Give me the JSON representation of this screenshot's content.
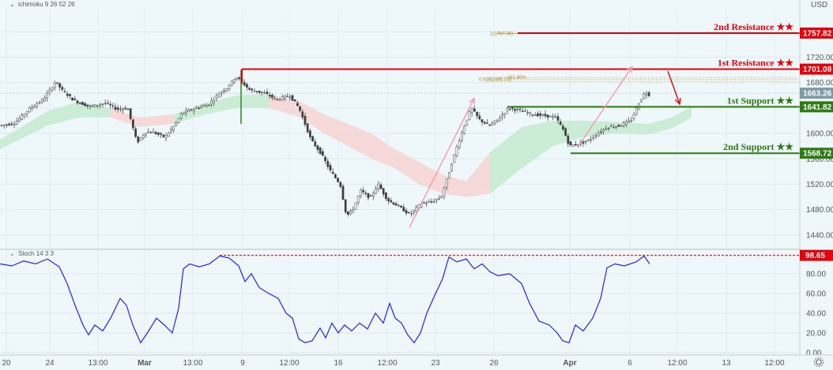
{
  "header": {
    "main_indicator": "ichimoku 9 26 52 26",
    "currency": "USD",
    "stoch_indicator": "Stoch 14 3 3"
  },
  "levels": [
    {
      "name": "2nd Resistance",
      "price": 1757.82,
      "price_label": "1757.82",
      "kind": "resistance",
      "color": "#e8000b"
    },
    {
      "name": "1st Resistance",
      "price": 1701.08,
      "price_label": "1701.08",
      "kind": "resistance",
      "color": "#e8000b"
    },
    {
      "name": "1st Support",
      "price": 1641.82,
      "price_label": "1641.82",
      "kind": "support",
      "color": "#2f7a12"
    },
    {
      "name": "2nd Support",
      "price": 1568.72,
      "price_label": "1568.72",
      "kind": "support",
      "color": "#2f7a12"
    }
  ],
  "star_glyph": "★★",
  "fib_labels": {
    "one": "1(1757.35)",
    "golden": "0.618(1685.33)",
    "mid": "161.80%"
  },
  "current_price": {
    "value": 1663.26,
    "label": "1663.26"
  },
  "stoch_level": {
    "value": 98.65,
    "label": "98.65"
  },
  "colors": {
    "background": "#eef8fb",
    "resistance": "#e8000b",
    "support": "#2f7a12",
    "stoch_line": "#2323e6",
    "arrow": "#f59aa8",
    "candle": "#3d3d3d",
    "cloud_bull": "#c7ebd0",
    "cloud_bear": "#f6d6d6"
  },
  "chart_data": [
    {
      "type": "candlestick",
      "title": "",
      "ylabel": "USD",
      "ylim": [
        1425,
        1795
      ],
      "y_ticks": [
        "1760.00",
        "1720.00",
        "1680.00",
        "1640.00",
        "1600.00",
        "1560.00",
        "1520.00",
        "1480.00",
        "1440.00"
      ],
      "x_ticks": [
        "20",
        "24",
        "13:00",
        "Mar",
        "13:00",
        "9",
        "12:00",
        "16",
        "12:00",
        "23",
        "26",
        "Apr",
        "6",
        "12:00",
        "13",
        "12:00"
      ],
      "series": [
        {
          "name": "price path",
          "points": [
            [
              0,
              1612
            ],
            [
              20,
              1616
            ],
            [
              40,
              1640
            ],
            [
              55,
              1652
            ],
            [
              65,
              1668
            ],
            [
              72,
              1682
            ],
            [
              80,
              1668
            ],
            [
              95,
              1652
            ],
            [
              115,
              1642
            ],
            [
              135,
              1648
            ],
            [
              150,
              1638
            ],
            [
              163,
              1640
            ],
            [
              175,
              1585
            ],
            [
              185,
              1602
            ],
            [
              195,
              1602
            ],
            [
              210,
              1594
            ],
            [
              222,
              1612
            ],
            [
              232,
              1632
            ],
            [
              250,
              1640
            ],
            [
              265,
              1645
            ],
            [
              278,
              1662
            ],
            [
              290,
              1673
            ],
            [
              300,
              1690
            ],
            [
              308,
              1680
            ],
            [
              318,
              1668
            ],
            [
              335,
              1664
            ],
            [
              352,
              1653
            ],
            [
              368,
              1660
            ],
            [
              380,
              1640
            ],
            [
              395,
              1590
            ],
            [
              408,
              1568
            ],
            [
              420,
              1540
            ],
            [
              432,
              1520
            ],
            [
              440,
              1470
            ],
            [
              448,
              1480
            ],
            [
              458,
              1510
            ],
            [
              470,
              1498
            ],
            [
              480,
              1520
            ],
            [
              492,
              1495
            ],
            [
              505,
              1486
            ],
            [
              520,
              1472
            ],
            [
              535,
              1490
            ],
            [
              548,
              1492
            ],
            [
              560,
              1500
            ],
            [
              570,
              1540
            ],
            [
              580,
              1580
            ],
            [
              590,
              1615
            ],
            [
              598,
              1640
            ],
            [
              608,
              1622
            ],
            [
              620,
              1612
            ],
            [
              632,
              1622
            ],
            [
              645,
              1640
            ],
            [
              660,
              1636
            ],
            [
              675,
              1630
            ],
            [
              690,
              1628
            ],
            [
              705,
              1625
            ],
            [
              715,
              1604
            ],
            [
              722,
              1580
            ],
            [
              732,
              1583
            ],
            [
              745,
              1588
            ],
            [
              758,
              1600
            ],
            [
              770,
              1610
            ],
            [
              785,
              1612
            ],
            [
              800,
              1620
            ],
            [
              810,
              1648
            ],
            [
              818,
              1665
            ],
            [
              824,
              1660
            ]
          ]
        },
        {
          "name": "cloud",
          "upper": [
            [
              0,
              1590
            ],
            [
              60,
              1635
            ],
            [
              100,
              1650
            ],
            [
              140,
              1640
            ],
            [
              175,
              1625
            ],
            [
              220,
              1630
            ],
            [
              260,
              1648
            ],
            [
              300,
              1660
            ],
            [
              340,
              1662
            ],
            [
              380,
              1650
            ],
            [
              410,
              1630
            ],
            [
              440,
              1615
            ],
            [
              470,
              1600
            ],
            [
              500,
              1575
            ],
            [
              530,
              1555
            ],
            [
              560,
              1535
            ],
            [
              590,
              1525
            ],
            [
              620,
              1570
            ],
            [
              660,
              1610
            ],
            [
              700,
              1620
            ],
            [
              740,
              1620
            ],
            [
              780,
              1618
            ],
            [
              820,
              1615
            ],
            [
              850,
              1625
            ],
            [
              875,
              1642
            ]
          ],
          "lower": [
            [
              0,
              1575
            ],
            [
              60,
              1612
            ],
            [
              100,
              1625
            ],
            [
              140,
              1625
            ],
            [
              175,
              1610
            ],
            [
              220,
              1615
            ],
            [
              260,
              1630
            ],
            [
              300,
              1640
            ],
            [
              340,
              1640
            ],
            [
              380,
              1625
            ],
            [
              410,
              1600
            ],
            [
              440,
              1580
            ],
            [
              470,
              1560
            ],
            [
              500,
              1545
            ],
            [
              530,
              1520
            ],
            [
              560,
              1505
            ],
            [
              590,
              1500
            ],
            [
              620,
              1505
            ],
            [
              660,
              1545
            ],
            [
              700,
              1580
            ],
            [
              740,
              1595
            ],
            [
              780,
              1600
            ],
            [
              820,
              1598
            ],
            [
              850,
              1608
            ],
            [
              875,
              1625
            ]
          ]
        }
      ],
      "annotations": {
        "arrows": [
          {
            "from": [
              518,
              1452
            ],
            "to": [
              600,
              1655
            ]
          },
          {
            "from": [
              732,
              1580
            ],
            "to": [
              800,
              1705
            ]
          },
          {
            "from": [
              845,
              1698
            ],
            "to": [
              860,
              1646
            ]
          }
        ],
        "fib_lines": [
          1757.35,
          1688,
          1685.33,
          1682
        ]
      }
    },
    {
      "type": "line",
      "title": "",
      "ylim": [
        0,
        100
      ],
      "y_ticks": [
        "80.00",
        "60.00",
        "40.00",
        "20.00",
        "0.00"
      ],
      "series": [
        {
          "name": "Stoch",
          "points": [
            [
              0,
              90
            ],
            [
              15,
              88
            ],
            [
              30,
              93
            ],
            [
              45,
              90
            ],
            [
              60,
              95
            ],
            [
              75,
              87
            ],
            [
              85,
              70
            ],
            [
              95,
              48
            ],
            [
              105,
              28
            ],
            [
              112,
              18
            ],
            [
              120,
              28
            ],
            [
              130,
              22
            ],
            [
              140,
              35
            ],
            [
              152,
              55
            ],
            [
              160,
              48
            ],
            [
              168,
              28
            ],
            [
              178,
              10
            ],
            [
              188,
              22
            ],
            [
              198,
              35
            ],
            [
              208,
              28
            ],
            [
              218,
              20
            ],
            [
              226,
              45
            ],
            [
              232,
              85
            ],
            [
              240,
              90
            ],
            [
              252,
              87
            ],
            [
              265,
              90
            ],
            [
              278,
              98
            ],
            [
              290,
              96
            ],
            [
              302,
              88
            ],
            [
              310,
              72
            ],
            [
              318,
              80
            ],
            [
              328,
              66
            ],
            [
              340,
              60
            ],
            [
              352,
              55
            ],
            [
              362,
              40
            ],
            [
              370,
              35
            ],
            [
              378,
              14
            ],
            [
              386,
              10
            ],
            [
              395,
              12
            ],
            [
              405,
              25
            ],
            [
              412,
              15
            ],
            [
              420,
              30
            ],
            [
              428,
              20
            ],
            [
              436,
              28
            ],
            [
              445,
              22
            ],
            [
              455,
              30
            ],
            [
              465,
              24
            ],
            [
              475,
              40
            ],
            [
              485,
              30
            ],
            [
              493,
              50
            ],
            [
              500,
              35
            ],
            [
              508,
              30
            ],
            [
              516,
              18
            ],
            [
              524,
              10
            ],
            [
              532,
              20
            ],
            [
              540,
              40
            ],
            [
              550,
              58
            ],
            [
              560,
              75
            ],
            [
              568,
              97
            ],
            [
              578,
              92
            ],
            [
              590,
              95
            ],
            [
              600,
              85
            ],
            [
              610,
              90
            ],
            [
              620,
              82
            ],
            [
              630,
              78
            ],
            [
              645,
              80
            ],
            [
              660,
              70
            ],
            [
              670,
              50
            ],
            [
              682,
              32
            ],
            [
              695,
              28
            ],
            [
              705,
              20
            ],
            [
              712,
              12
            ],
            [
              720,
              10
            ],
            [
              728,
              28
            ],
            [
              738,
              22
            ],
            [
              750,
              35
            ],
            [
              760,
              55
            ],
            [
              768,
              86
            ],
            [
              778,
              90
            ],
            [
              790,
              88
            ],
            [
              805,
              92
            ],
            [
              815,
              98
            ],
            [
              822,
              90
            ]
          ]
        }
      ]
    }
  ]
}
